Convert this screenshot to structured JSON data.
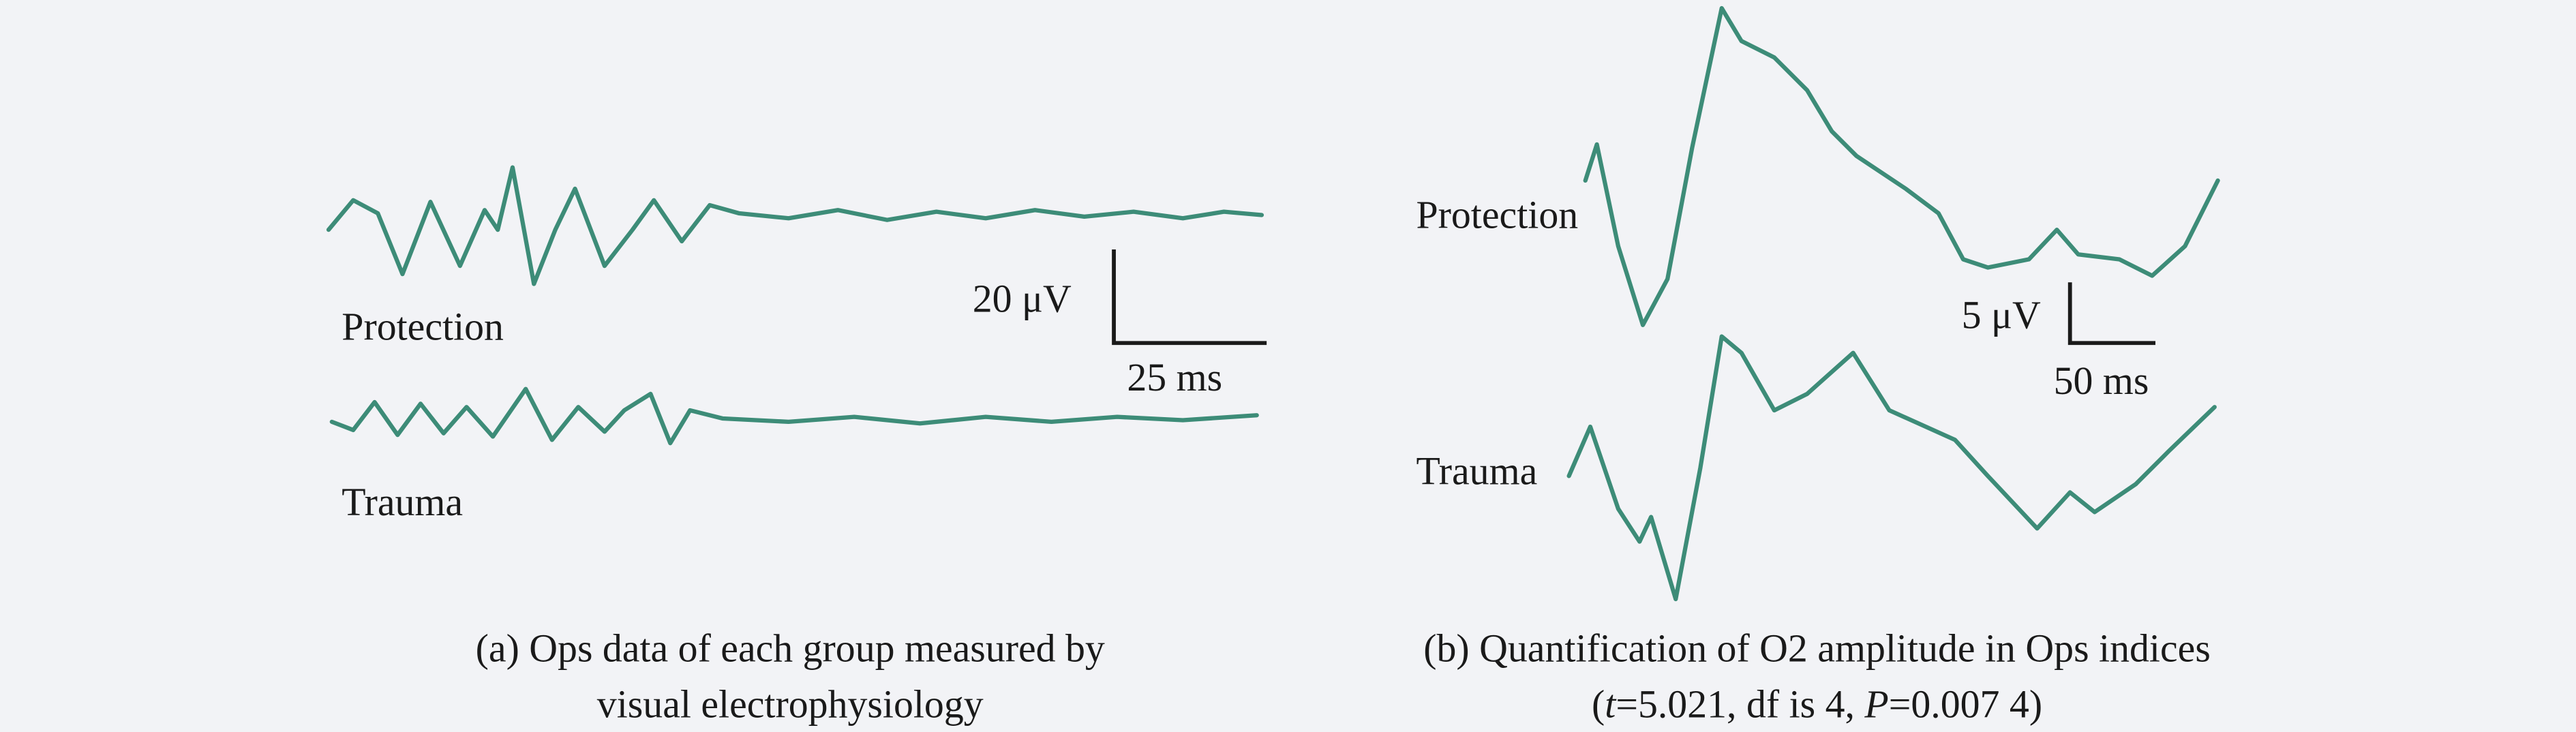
{
  "panel_a": {
    "scale_voltage": "20 μV",
    "scale_time": "25 ms",
    "label_protection": "Protection",
    "label_trauma": "Trauma",
    "caption_line1": "(a) Ops data of each group measured by",
    "caption_line2": "visual electrophysiology"
  },
  "panel_b": {
    "scale_voltage": "5 μV",
    "scale_time": "50 ms",
    "label_protection": "Protection",
    "label_trauma": "Trauma",
    "caption_line1": "(b) Quantification of O2 amplitude in Ops indices",
    "caption_line2": [
      "(",
      "t",
      "=5.021, df is 4, ",
      "P",
      "=0.007 4)"
    ]
  }
}
